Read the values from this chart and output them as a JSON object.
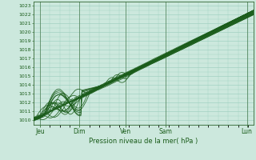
{
  "xlabel": "Pression niveau de la mer( hPa )",
  "ylim": [
    1009.5,
    1023.5
  ],
  "yticks": [
    1010,
    1011,
    1012,
    1013,
    1014,
    1015,
    1016,
    1017,
    1018,
    1019,
    1020,
    1021,
    1022,
    1023
  ],
  "xtick_labels": [
    "Jeu",
    "Dim",
    "Ven",
    "Sam",
    "Lun"
  ],
  "xtick_positions": [
    0.03,
    0.21,
    0.42,
    0.6,
    0.97
  ],
  "bg_color": "#cce8dd",
  "grid_color": "#99ccbb",
  "line_color": "#1a5c1a",
  "border_color": "#336633",
  "figsize": [
    3.2,
    2.0
  ],
  "dpi": 100,
  "xlim": [
    0,
    1
  ]
}
